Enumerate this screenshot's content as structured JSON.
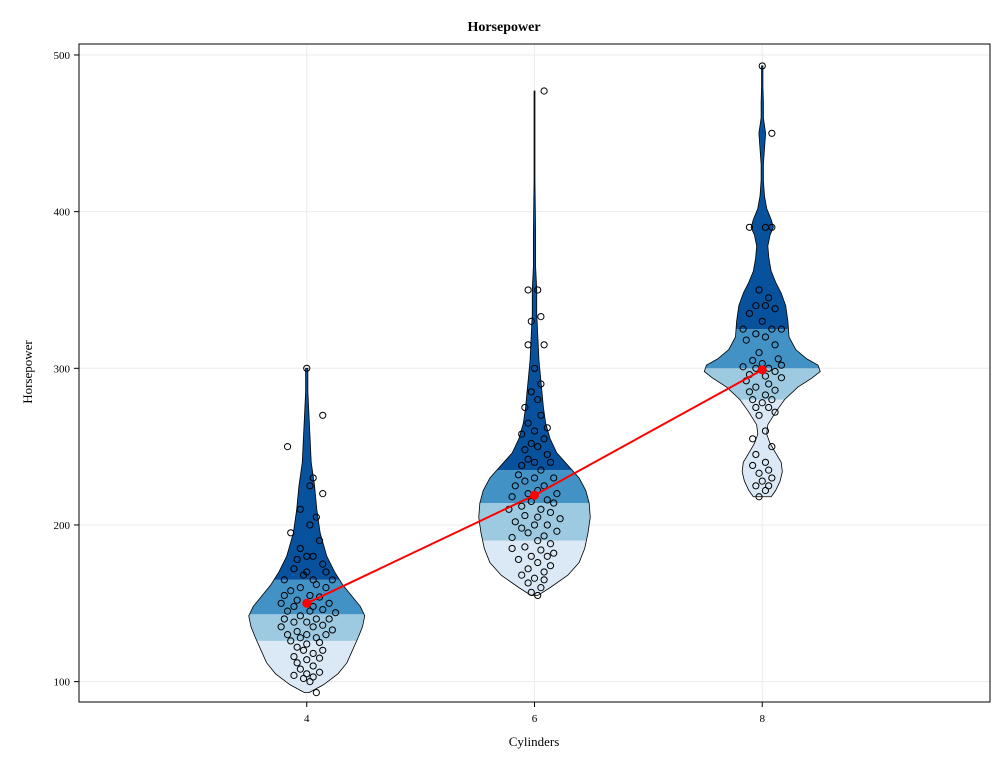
{
  "chart_data": {
    "type": "violin",
    "title": "Horsepower",
    "xlabel": "Cylinders",
    "ylabel": "Horsepower",
    "categories": [
      "4",
      "6",
      "8"
    ],
    "x_values": [
      4,
      6,
      8
    ],
    "xlim": [
      2,
      10
    ],
    "ylim": [
      87,
      507
    ],
    "x_ticks": [
      4,
      6,
      8
    ],
    "y_ticks": [
      100,
      200,
      300,
      400,
      500
    ],
    "grid": true,
    "colors": {
      "q1": "#dbe8f5",
      "q2": "#9ecae1",
      "q3": "#4292c6",
      "q4": "#08519c",
      "mean_line": "#ff0000",
      "mean_marker": "#ff0000",
      "points_stroke": "#000000",
      "grid": "#ebebeb"
    },
    "groups": [
      {
        "cylinders": 4,
        "min": 93,
        "max": 300,
        "quartiles": [
          126,
          143,
          165
        ],
        "mean": 150,
        "density": [
          [
            93,
            2
          ],
          [
            98,
            15
          ],
          [
            105,
            28
          ],
          [
            112,
            36
          ],
          [
            120,
            41
          ],
          [
            128,
            46
          ],
          [
            135,
            50
          ],
          [
            142,
            52
          ],
          [
            148,
            48
          ],
          [
            155,
            40
          ],
          [
            162,
            32
          ],
          [
            170,
            25
          ],
          [
            180,
            18
          ],
          [
            195,
            12
          ],
          [
            210,
            9
          ],
          [
            225,
            7
          ],
          [
            240,
            4
          ],
          [
            255,
            3
          ],
          [
            270,
            2
          ],
          [
            285,
            1
          ],
          [
            300,
            1
          ]
        ],
        "points": [
          [
            300,
            0
          ],
          [
            270,
            5
          ],
          [
            250,
            -6
          ],
          [
            230,
            2
          ],
          [
            225,
            1
          ],
          [
            220,
            5
          ],
          [
            210,
            -2
          ],
          [
            205,
            3
          ],
          [
            200,
            1
          ],
          [
            195,
            -5
          ],
          [
            190,
            4
          ],
          [
            185,
            -2
          ],
          [
            180,
            0
          ],
          [
            180,
            2
          ],
          [
            178,
            -3
          ],
          [
            175,
            5
          ],
          [
            172,
            -4
          ],
          [
            170,
            0
          ],
          [
            170,
            6
          ],
          [
            168,
            -1
          ],
          [
            165,
            2
          ],
          [
            165,
            -7
          ],
          [
            165,
            8
          ],
          [
            162,
            3
          ],
          [
            160,
            -2
          ],
          [
            160,
            6
          ],
          [
            158,
            -5
          ],
          [
            155,
            1
          ],
          [
            155,
            -7
          ],
          [
            154,
            4
          ],
          [
            152,
            -3
          ],
          [
            150,
            0
          ],
          [
            150,
            7
          ],
          [
            150,
            -8
          ],
          [
            148,
            2
          ],
          [
            148,
            -4
          ],
          [
            146,
            5
          ],
          [
            145,
            -6
          ],
          [
            145,
            1
          ],
          [
            144,
            9
          ],
          [
            142,
            -2
          ],
          [
            140,
            3
          ],
          [
            140,
            -7
          ],
          [
            140,
            7
          ],
          [
            138,
            0
          ],
          [
            138,
            -4
          ],
          [
            136,
            5
          ],
          [
            135,
            -8
          ],
          [
            135,
            2
          ],
          [
            133,
            8
          ],
          [
            132,
            -3
          ],
          [
            130,
            0
          ],
          [
            130,
            6
          ],
          [
            130,
            -6
          ],
          [
            128,
            3
          ],
          [
            128,
            -2
          ],
          [
            126,
            -5
          ],
          [
            125,
            4
          ],
          [
            124,
            0
          ],
          [
            122,
            -3
          ],
          [
            120,
            5
          ],
          [
            120,
            -1
          ],
          [
            118,
            2
          ],
          [
            116,
            -4
          ],
          [
            115,
            4
          ],
          [
            114,
            0
          ],
          [
            112,
            -3
          ],
          [
            110,
            2
          ],
          [
            108,
            -2
          ],
          [
            106,
            4
          ],
          [
            105,
            0
          ],
          [
            104,
            -4
          ],
          [
            103,
            2
          ],
          [
            102,
            -1
          ],
          [
            100,
            1
          ],
          [
            93,
            3
          ]
        ]
      },
      {
        "cylinders": 6,
        "min": 155,
        "max": 477,
        "quartiles": [
          190,
          214,
          235
        ],
        "mean": 219,
        "density": [
          [
            155,
            3
          ],
          [
            160,
            14
          ],
          [
            168,
            30
          ],
          [
            176,
            40
          ],
          [
            185,
            45
          ],
          [
            195,
            48
          ],
          [
            205,
            50
          ],
          [
            214,
            49
          ],
          [
            222,
            46
          ],
          [
            230,
            40
          ],
          [
            238,
            30
          ],
          [
            246,
            20
          ],
          [
            255,
            14
          ],
          [
            265,
            10
          ],
          [
            275,
            8
          ],
          [
            290,
            6
          ],
          [
            305,
            4
          ],
          [
            320,
            3
          ],
          [
            335,
            2
          ],
          [
            350,
            2
          ],
          [
            365,
            1
          ],
          [
            385,
            1
          ],
          [
            420,
            0.4
          ],
          [
            450,
            0.4
          ],
          [
            477,
            0.4
          ]
        ],
        "points": [
          [
            477,
            3
          ],
          [
            350,
            -2
          ],
          [
            350,
            1
          ],
          [
            333,
            2
          ],
          [
            330,
            -1
          ],
          [
            315,
            -2
          ],
          [
            315,
            3
          ],
          [
            300,
            0
          ],
          [
            290,
            2
          ],
          [
            285,
            -1
          ],
          [
            280,
            1
          ],
          [
            275,
            -3
          ],
          [
            270,
            2
          ],
          [
            265,
            -2
          ],
          [
            262,
            4
          ],
          [
            260,
            0
          ],
          [
            258,
            -4
          ],
          [
            255,
            3
          ],
          [
            252,
            -1
          ],
          [
            250,
            1
          ],
          [
            248,
            -3
          ],
          [
            245,
            4
          ],
          [
            242,
            -2
          ],
          [
            240,
            0
          ],
          [
            240,
            5
          ],
          [
            238,
            -4
          ],
          [
            235,
            2
          ],
          [
            232,
            -5
          ],
          [
            230,
            0
          ],
          [
            230,
            6
          ],
          [
            228,
            -3
          ],
          [
            225,
            3
          ],
          [
            225,
            -6
          ],
          [
            222,
            1
          ],
          [
            220,
            -2
          ],
          [
            220,
            7
          ],
          [
            218,
            -7
          ],
          [
            216,
            4
          ],
          [
            215,
            -1
          ],
          [
            214,
            6
          ],
          [
            212,
            -4
          ],
          [
            210,
            2
          ],
          [
            210,
            -8
          ],
          [
            208,
            5
          ],
          [
            206,
            -3
          ],
          [
            205,
            1
          ],
          [
            204,
            8
          ],
          [
            202,
            -6
          ],
          [
            200,
            0
          ],
          [
            200,
            4
          ],
          [
            198,
            -4
          ],
          [
            196,
            7
          ],
          [
            195,
            -2
          ],
          [
            193,
            3
          ],
          [
            192,
            -7
          ],
          [
            190,
            1
          ],
          [
            188,
            5
          ],
          [
            186,
            -3
          ],
          [
            185,
            -7
          ],
          [
            184,
            2
          ],
          [
            182,
            6
          ],
          [
            180,
            -1
          ],
          [
            180,
            4
          ],
          [
            178,
            -5
          ],
          [
            176,
            1
          ],
          [
            174,
            5
          ],
          [
            172,
            -2
          ],
          [
            170,
            3
          ],
          [
            168,
            -4
          ],
          [
            166,
            0
          ],
          [
            165,
            3
          ],
          [
            163,
            -2
          ],
          [
            160,
            2
          ],
          [
            157,
            -1
          ],
          [
            155,
            1
          ]
        ]
      },
      {
        "cylinders": 8,
        "min": 218,
        "max": 493,
        "quartiles": [
          280,
          300,
          325
        ],
        "mean": 299,
        "density": [
          [
            218,
            8
          ],
          [
            222,
            12
          ],
          [
            228,
            16
          ],
          [
            234,
            18
          ],
          [
            240,
            17
          ],
          [
            246,
            12
          ],
          [
            252,
            7
          ],
          [
            258,
            4
          ],
          [
            264,
            5
          ],
          [
            272,
            12
          ],
          [
            280,
            20
          ],
          [
            288,
            32
          ],
          [
            294,
            45
          ],
          [
            298,
            52
          ],
          [
            302,
            50
          ],
          [
            306,
            40
          ],
          [
            312,
            30
          ],
          [
            320,
            24
          ],
          [
            330,
            23
          ],
          [
            340,
            21
          ],
          [
            348,
            17
          ],
          [
            355,
            12
          ],
          [
            362,
            8
          ],
          [
            370,
            6
          ],
          [
            378,
            5
          ],
          [
            385,
            7
          ],
          [
            390,
            10
          ],
          [
            395,
            8
          ],
          [
            402,
            4
          ],
          [
            410,
            2
          ],
          [
            420,
            1
          ],
          [
            430,
            1
          ],
          [
            440,
            2
          ],
          [
            450,
            3
          ],
          [
            460,
            1
          ],
          [
            470,
            1
          ],
          [
            480,
            0.6
          ],
          [
            493,
            0.6
          ]
        ],
        "points": [
          [
            493,
            0
          ],
          [
            450,
            3
          ],
          [
            390,
            -4
          ],
          [
            390,
            1
          ],
          [
            390,
            3
          ],
          [
            350,
            -1
          ],
          [
            345,
            2
          ],
          [
            340,
            -2
          ],
          [
            340,
            1
          ],
          [
            338,
            4
          ],
          [
            335,
            -4
          ],
          [
            330,
            0
          ],
          [
            325,
            3
          ],
          [
            325,
            -6
          ],
          [
            325,
            6
          ],
          [
            322,
            -2
          ],
          [
            320,
            1
          ],
          [
            318,
            -5
          ],
          [
            315,
            4
          ],
          [
            310,
            -1
          ],
          [
            306,
            5
          ],
          [
            305,
            -3
          ],
          [
            303,
            0
          ],
          [
            302,
            6
          ],
          [
            301,
            -6
          ],
          [
            300,
            2
          ],
          [
            300,
            -2
          ],
          [
            298,
            4
          ],
          [
            296,
            -4
          ],
          [
            295,
            1
          ],
          [
            294,
            6
          ],
          [
            292,
            -5
          ],
          [
            290,
            2
          ],
          [
            288,
            -2
          ],
          [
            286,
            4
          ],
          [
            285,
            -4
          ],
          [
            283,
            1
          ],
          [
            280,
            3
          ],
          [
            280,
            -3
          ],
          [
            278,
            0
          ],
          [
            275,
            2
          ],
          [
            275,
            -2
          ],
          [
            272,
            4
          ],
          [
            270,
            -1
          ],
          [
            260,
            1
          ],
          [
            255,
            -3
          ],
          [
            250,
            3
          ],
          [
            245,
            -2
          ],
          [
            240,
            1
          ],
          [
            238,
            -3
          ],
          [
            235,
            2
          ],
          [
            233,
            -1
          ],
          [
            230,
            3
          ],
          [
            228,
            0
          ],
          [
            225,
            -2
          ],
          [
            225,
            2
          ],
          [
            222,
            1
          ],
          [
            218,
            -1
          ]
        ]
      }
    ],
    "mean_line": [
      [
        4,
        150
      ],
      [
        6,
        219
      ],
      [
        8,
        299
      ]
    ]
  }
}
